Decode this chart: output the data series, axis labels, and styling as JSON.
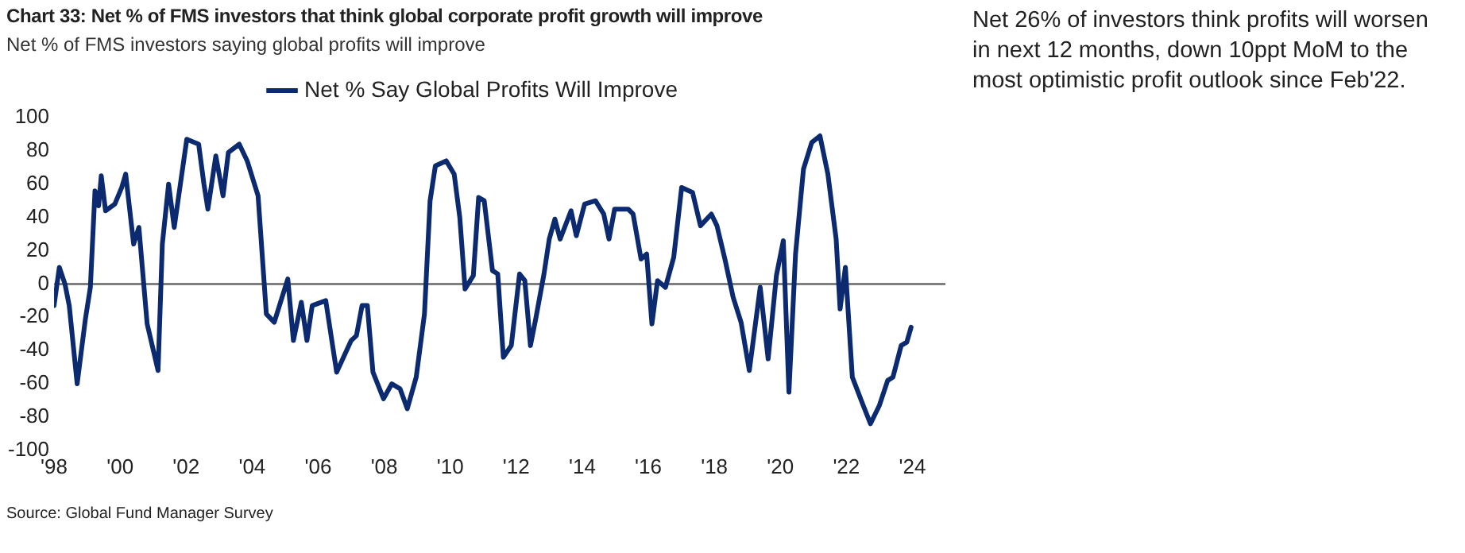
{
  "chart_data": {
    "type": "line",
    "title": "Chart 33: Net % of FMS investors that think global corporate profit growth will improve",
    "subtitle": "Net % of FMS investors saying global profits will improve",
    "annotations": [
      "Net 26% of investors think profits will worsen in next 12 months, down 10ppt MoM to the most optimistic profit outlook since Feb'22.",
      "Source: Global Fund Manager Survey"
    ],
    "x": [
      1998.0,
      1998.16,
      1998.33,
      1998.46,
      1998.7,
      1998.95,
      1999.1,
      1999.24,
      1999.35,
      1999.43,
      1999.56,
      1999.84,
      2000.05,
      2000.17,
      2000.41,
      2000.57,
      2000.82,
      2001.15,
      2001.28,
      2001.47,
      2001.64,
      2002.02,
      2002.38,
      2002.54,
      2002.66,
      2002.9,
      2003.12,
      2003.28,
      2003.61,
      2003.85,
      2004.18,
      2004.43,
      2004.67,
      2005.08,
      2005.25,
      2005.49,
      2005.66,
      2005.82,
      2006.23,
      2006.56,
      2007.0,
      2007.16,
      2007.33,
      2007.49,
      2007.66,
      2007.98,
      2008.23,
      2008.48,
      2008.7,
      2008.97,
      2009.22,
      2009.39,
      2009.55,
      2009.88,
      2010.12,
      2010.29,
      2010.45,
      2010.7,
      2010.86,
      2011.03,
      2011.28,
      2011.44,
      2011.61,
      2011.85,
      2012.1,
      2012.26,
      2012.43,
      2012.59,
      2012.84,
      2013.0,
      2013.17,
      2013.33,
      2013.66,
      2013.82,
      2014.07,
      2014.4,
      2014.65,
      2014.81,
      2014.98,
      2015.39,
      2015.54,
      2015.78,
      2015.95,
      2016.11,
      2016.28,
      2016.52,
      2016.77,
      2017.01,
      2017.34,
      2017.58,
      2017.91,
      2018.08,
      2018.32,
      2018.57,
      2018.81,
      2019.06,
      2019.39,
      2019.63,
      2019.88,
      2020.09,
      2020.26,
      2020.46,
      2020.7,
      2020.95,
      2021.2,
      2021.44,
      2021.69,
      2021.81,
      2021.97,
      2022.18,
      2022.51,
      2022.73,
      2023.0,
      2023.25,
      2023.41,
      2023.66,
      2023.83,
      2023.96
    ],
    "series": [
      {
        "name": "Net % Say Global Profits Will Improve",
        "color": "#0b2a6f",
        "values": [
          -13,
          10,
          0,
          -13,
          -60,
          -21,
          -2,
          56,
          47,
          65,
          44,
          48,
          58,
          66,
          24,
          34,
          -24,
          -52,
          24,
          60,
          34,
          87,
          84,
          60,
          45,
          77,
          53,
          79,
          84,
          74,
          53,
          -18,
          -23,
          3,
          -34,
          -11,
          -34,
          -13,
          -10,
          -53,
          -34,
          -31,
          -13,
          -13,
          -53,
          -69,
          -60,
          -63,
          -75,
          -56,
          -18,
          50,
          71,
          74,
          66,
          40,
          -3,
          5,
          52,
          50,
          8,
          6,
          -44,
          -37,
          6,
          2,
          -37,
          -21,
          6,
          27,
          39,
          27,
          44,
          29,
          48,
          50,
          42,
          27,
          45,
          45,
          42,
          15,
          18,
          -24,
          2,
          -2,
          16,
          58,
          55,
          35,
          42,
          35,
          15,
          -8,
          -23,
          -52,
          -2,
          -45,
          5,
          26,
          -65,
          18,
          69,
          85,
          89,
          66,
          27,
          -15,
          10,
          -56,
          -73,
          -84,
          -73,
          -58,
          -56,
          -37,
          -35,
          -26
        ]
      }
    ],
    "xlim": [
      1998,
      2025
    ],
    "xticks": [
      {
        "value": 1998,
        "label": "'98"
      },
      {
        "value": 2000,
        "label": "'00"
      },
      {
        "value": 2002,
        "label": "'02"
      },
      {
        "value": 2004,
        "label": "'04"
      },
      {
        "value": 2006,
        "label": "'06"
      },
      {
        "value": 2008,
        "label": "'08"
      },
      {
        "value": 2010,
        "label": "'10"
      },
      {
        "value": 2012,
        "label": "'12"
      },
      {
        "value": 2014,
        "label": "'14"
      },
      {
        "value": 2016,
        "label": "'16"
      },
      {
        "value": 2018,
        "label": "'18"
      },
      {
        "value": 2020,
        "label": "'20"
      },
      {
        "value": 2022,
        "label": "'22"
      },
      {
        "value": 2024,
        "label": "'24"
      }
    ],
    "ylim": [
      -100,
      100
    ],
    "yticks": [
      -100,
      -80,
      -60,
      -40,
      -20,
      0,
      20,
      40,
      60,
      80,
      100
    ],
    "ref_lines": [
      {
        "axis": "y",
        "value": 0,
        "color": "#7f7f7f"
      }
    ],
    "legend": "top",
    "line_style": "solid"
  }
}
